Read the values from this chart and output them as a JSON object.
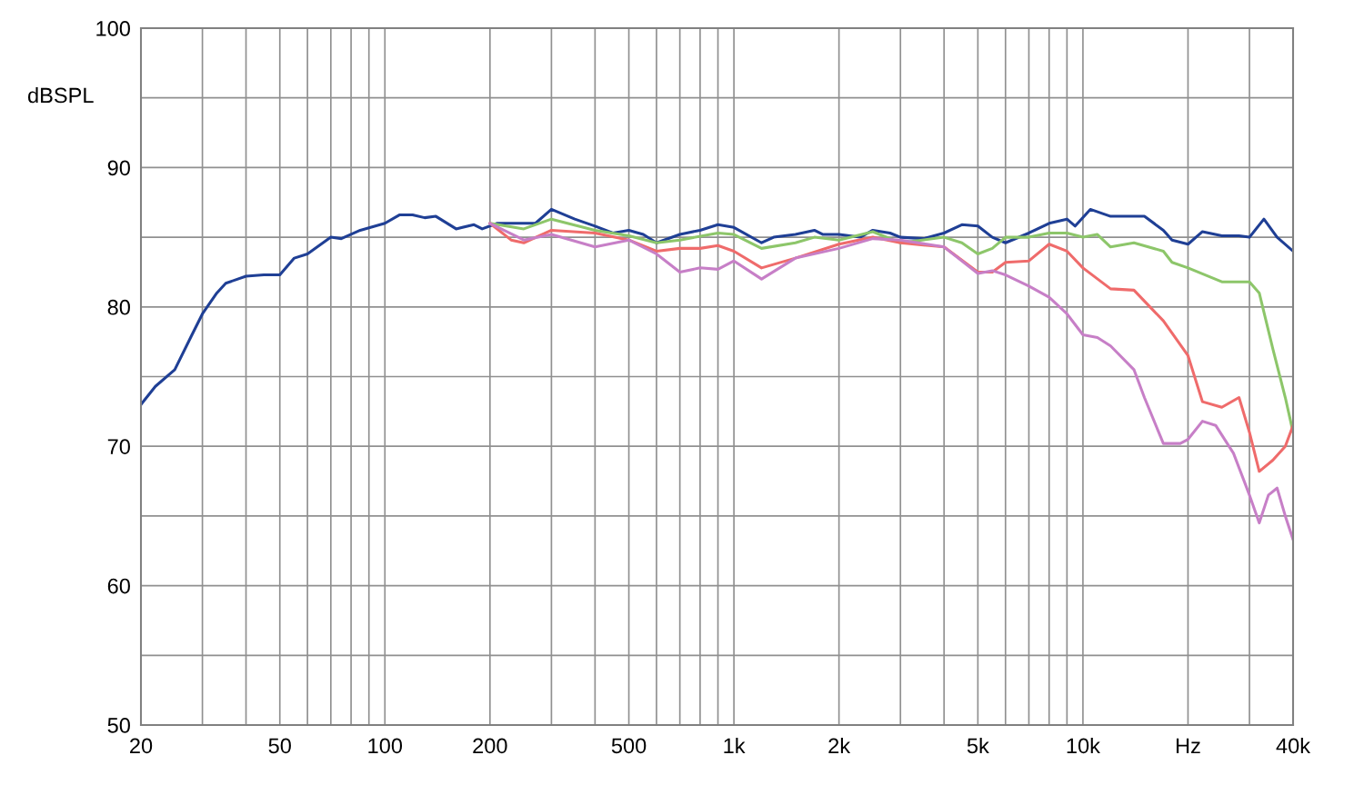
{
  "chart_data": {
    "type": "line",
    "ylabel": "dBSPL",
    "log": "x",
    "grid": true,
    "xlim": [
      20,
      40000
    ],
    "ylim": [
      50,
      100
    ],
    "xticks": [
      20,
      {
        "value": 30,
        "label": null
      },
      {
        "value": 40,
        "label": null
      },
      50,
      {
        "value": 60,
        "label": null
      },
      {
        "value": 70,
        "label": null
      },
      {
        "value": 80,
        "label": null
      },
      {
        "value": 90,
        "label": null
      },
      100,
      200,
      {
        "value": 300,
        "label": null
      },
      {
        "value": 400,
        "label": null
      },
      500,
      {
        "value": 600,
        "label": null
      },
      {
        "value": 700,
        "label": null
      },
      {
        "value": 800,
        "label": null
      },
      {
        "value": 900,
        "label": null
      },
      {
        "value": 1000,
        "label": "1k"
      },
      {
        "value": 2000,
        "label": "2k"
      },
      {
        "value": 3000,
        "label": null
      },
      {
        "value": 4000,
        "label": null
      },
      {
        "value": 5000,
        "label": "5k"
      },
      {
        "value": 6000,
        "label": null
      },
      {
        "value": 7000,
        "label": null
      },
      {
        "value": 8000,
        "label": null
      },
      {
        "value": 9000,
        "label": null
      },
      {
        "value": 10000,
        "label": "10k"
      },
      {
        "value": 20000,
        "label": "Hz"
      },
      {
        "value": 30000,
        "label": null
      },
      {
        "value": 40000,
        "label": "40k"
      }
    ],
    "yticks": [
      50,
      {
        "value": 55,
        "label": null
      },
      60,
      {
        "value": 65,
        "label": null
      },
      70,
      {
        "value": 75,
        "label": null
      },
      80,
      {
        "value": 85,
        "label": null
      },
      90,
      {
        "value": 95,
        "label": null
      },
      100
    ],
    "series": [
      {
        "color": "#1f3f95",
        "x": [
          20,
          22,
          25,
          28,
          30,
          33,
          35,
          40,
          45,
          50,
          55,
          60,
          70,
          75,
          85,
          100,
          110,
          120,
          130,
          140,
          160,
          180,
          190,
          210,
          250,
          270,
          300,
          350,
          400,
          450,
          500,
          550,
          600,
          700,
          800,
          900,
          1000,
          1200,
          1300,
          1500,
          1700,
          1800,
          2000,
          2300,
          2500,
          2800,
          3000,
          3500,
          4000,
          4500,
          5000,
          5500,
          6000,
          7000,
          8000,
          9000,
          9500,
          10500,
          12000,
          15000,
          17000,
          18000,
          20000,
          22000,
          25000,
          28000,
          30000,
          33000,
          36000,
          40000
        ],
        "values": [
          73,
          74.3,
          75.5,
          78,
          79.5,
          81,
          81.7,
          82.2,
          82.3,
          82.3,
          83.5,
          83.8,
          85,
          84.9,
          85.5,
          86,
          86.6,
          86.6,
          86.4,
          86.5,
          85.6,
          85.9,
          85.6,
          86,
          86,
          86,
          87,
          86.3,
          85.8,
          85.3,
          85.5,
          85.2,
          84.6,
          85.2,
          85.5,
          85.9,
          85.7,
          84.6,
          85,
          85.2,
          85.5,
          85.2,
          85.2,
          85,
          85.5,
          85.3,
          85,
          84.9,
          85.3,
          85.9,
          85.8,
          85,
          84.6,
          85.3,
          86,
          86.3,
          85.8,
          87,
          86.5,
          86.5,
          85.5,
          84.8,
          84.5,
          85.4,
          85.1,
          85.1,
          85,
          86.3,
          85,
          84
        ]
      },
      {
        "color": "#8dc66a",
        "x": [
          200,
          250,
          300,
          400,
          500,
          600,
          700,
          900,
          1000,
          1200,
          1500,
          1700,
          2000,
          2500,
          3000,
          4000,
          4500,
          5000,
          5500,
          6000,
          7000,
          8000,
          9000,
          10000,
          11000,
          12000,
          14000,
          17000,
          18000,
          20000,
          25000,
          30000,
          32000,
          35000,
          38000,
          40000
        ],
        "values": [
          86,
          85.6,
          86.3,
          85.5,
          85.1,
          84.6,
          84.8,
          85.3,
          85.2,
          84.2,
          84.6,
          85,
          84.8,
          85.4,
          84.6,
          85,
          84.6,
          83.8,
          84.2,
          85,
          85,
          85.3,
          85.3,
          85,
          85.2,
          84.3,
          84.6,
          84,
          83.2,
          82.8,
          81.8,
          81.8,
          81,
          77,
          73.5,
          71
        ]
      },
      {
        "color": "#ef6b6b",
        "x": [
          200,
          230,
          250,
          300,
          400,
          500,
          600,
          700,
          800,
          900,
          1000,
          1200,
          1500,
          2000,
          2500,
          3000,
          4000,
          5000,
          5500,
          6000,
          7000,
          8000,
          9000,
          10000,
          12000,
          14000,
          17000,
          20000,
          22000,
          25000,
          28000,
          30000,
          32000,
          35000,
          38000,
          40000
        ],
        "values": [
          86,
          84.8,
          84.6,
          85.5,
          85.3,
          84.8,
          84,
          84.2,
          84.2,
          84.4,
          84,
          82.8,
          83.5,
          84.5,
          85,
          84.6,
          84.3,
          82.5,
          82.5,
          83.2,
          83.3,
          84.5,
          84,
          82.8,
          81.3,
          81.2,
          79,
          76.5,
          73.2,
          72.8,
          73.5,
          71,
          68.2,
          69,
          70,
          71.5
        ]
      },
      {
        "color": "#c77fc7",
        "x": [
          200,
          250,
          300,
          400,
          500,
          600,
          700,
          800,
          900,
          1000,
          1200,
          1500,
          2000,
          2500,
          3000,
          4000,
          5000,
          5500,
          6000,
          7000,
          8000,
          9000,
          10000,
          11000,
          12000,
          14000,
          15000,
          17000,
          19000,
          20000,
          22000,
          24000,
          27000,
          30000,
          32000,
          34000,
          36000,
          38000,
          40000
        ],
        "values": [
          86,
          84.8,
          85.2,
          84.3,
          84.8,
          83.8,
          82.5,
          82.8,
          82.7,
          83.3,
          82,
          83.5,
          84.2,
          84.9,
          84.8,
          84.3,
          82.4,
          82.6,
          82.3,
          81.5,
          80.7,
          79.5,
          78,
          77.8,
          77.2,
          75.5,
          73.5,
          70.2,
          70.2,
          70.5,
          71.8,
          71.5,
          69.5,
          66.5,
          64.5,
          66.5,
          67,
          65,
          63.3
        ]
      }
    ]
  }
}
